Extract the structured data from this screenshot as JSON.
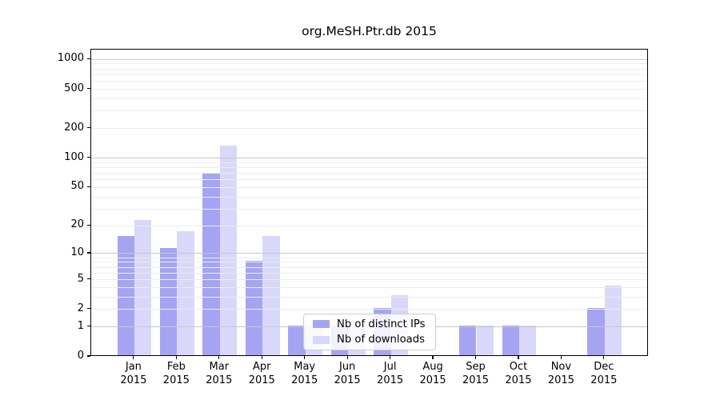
{
  "title": "org.MeSH.Ptr.db 2015",
  "chart_data": {
    "type": "bar",
    "title": "org.MeSH.Ptr.db 2015",
    "categories": [
      "Jan 2015",
      "Feb 2015",
      "Mar 2015",
      "Apr 2015",
      "May 2015",
      "Jun 2015",
      "Jul 2015",
      "Aug 2015",
      "Sep 2015",
      "Oct 2015",
      "Nov 2015",
      "Dec 2015"
    ],
    "series": [
      {
        "name": "Nb of distinct IPs",
        "color": "#a5a4f2",
        "values": [
          15,
          11,
          68,
          8,
          1,
          1,
          2,
          0,
          1,
          1,
          0,
          2
        ]
      },
      {
        "name": "Nb of downloads",
        "color": "#d9d8fa",
        "values": [
          22,
          17,
          130,
          15,
          1,
          1,
          3,
          0,
          1,
          1,
          0,
          4
        ]
      }
    ],
    "yscale": "log1p",
    "ytick_labels": [
      "0",
      "1",
      "2",
      "5",
      "10",
      "20",
      "50",
      "100",
      "200",
      "500",
      "1000"
    ],
    "ytick_values": [
      0,
      1,
      2,
      5,
      10,
      20,
      50,
      100,
      200,
      500,
      1000
    ],
    "ylim": [
      0,
      1258
    ],
    "grid": "on",
    "legend_position": "inside-bottom-center"
  },
  "colors": {
    "bar_ips": "#a5a4f2",
    "bar_downloads": "#d9d8fa",
    "grid_major": "#c8c8c8",
    "grid_minor": "#ececec",
    "axis": "#000000",
    "text": "#000000",
    "legend_border": "#cccccc"
  }
}
